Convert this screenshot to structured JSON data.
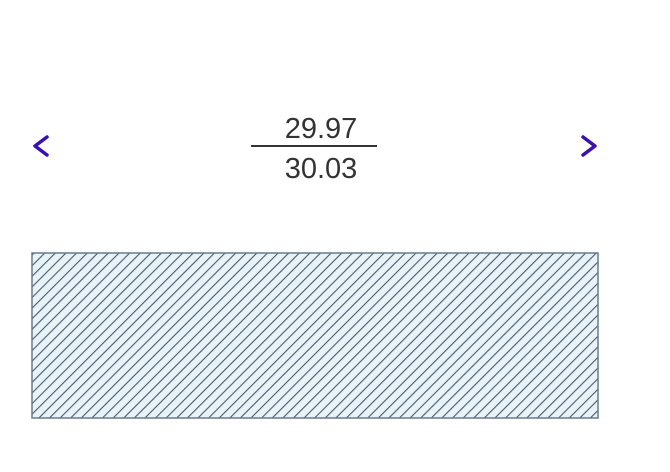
{
  "dimension": {
    "upper_tolerance": "29.97",
    "lower_tolerance": "30.03"
  },
  "colors": {
    "extension_line": "#c8485e",
    "arrow": "#3a10a8",
    "hatch_line": "#4a5a6e",
    "hatch_fill": "#e8f3f7",
    "text": "#333333"
  }
}
